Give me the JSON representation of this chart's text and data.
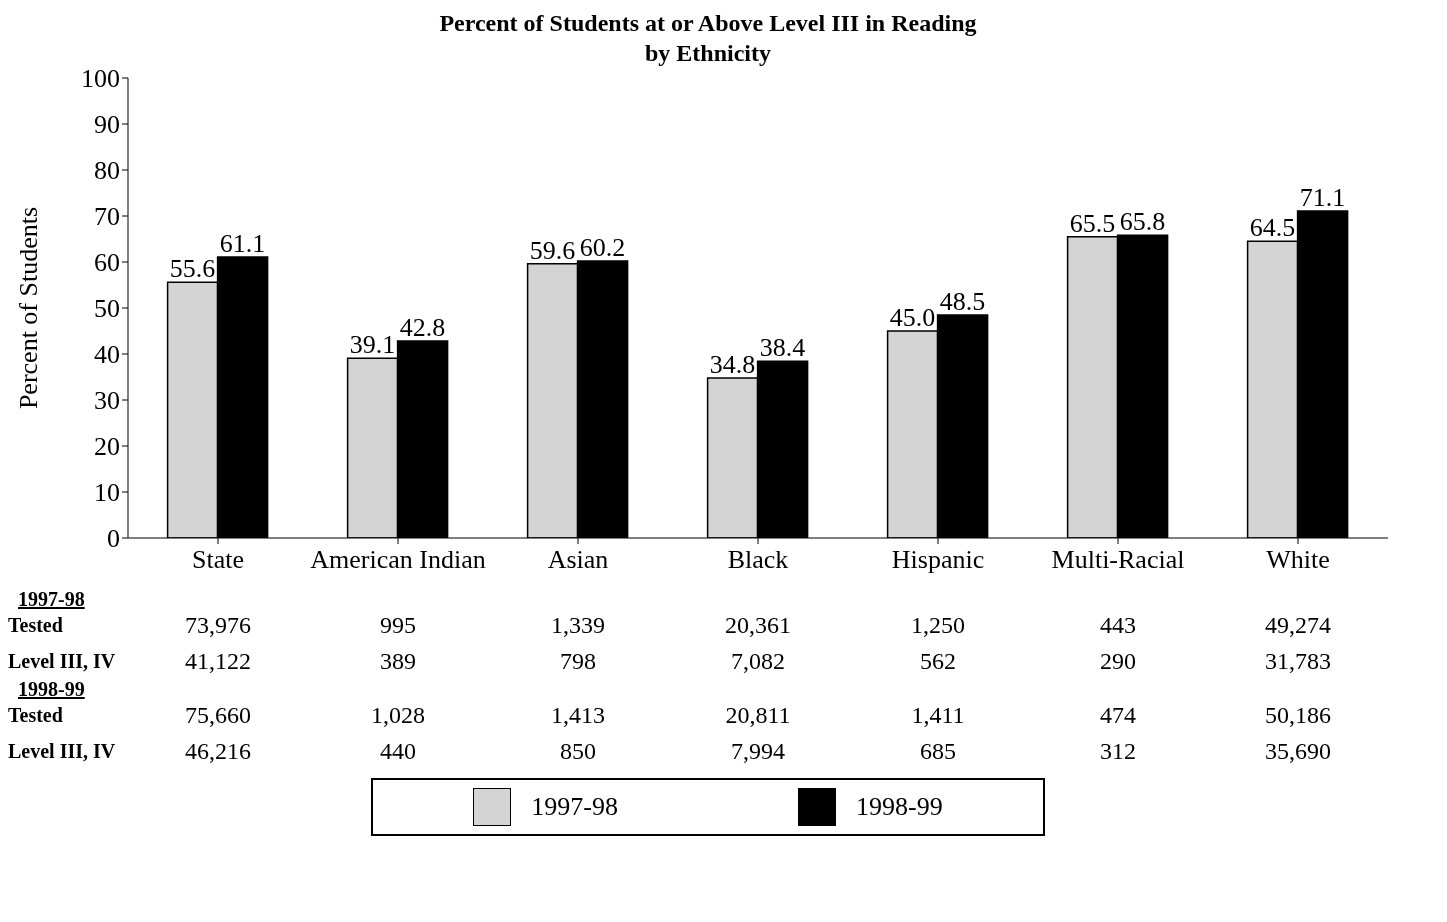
{
  "chart_data": {
    "type": "bar",
    "title": "Percent of Students at or Above Level III in Reading",
    "subtitle": "by Ethnicity",
    "ylabel": "Percent of Students",
    "categories": [
      "State",
      "American Indian",
      "Asian",
      "Black",
      "Hispanic",
      "Multi-Racial",
      "White"
    ],
    "series": [
      {
        "name": "1997-98",
        "color": "#d4d4d4",
        "values": [
          55.6,
          39.1,
          59.6,
          34.8,
          45.0,
          65.5,
          64.5
        ],
        "value_labels": [
          "55.6",
          "39.1",
          "59.6",
          "34.8",
          "45.0",
          "65.5",
          "64.5"
        ]
      },
      {
        "name": "1998-99",
        "color": "#000000",
        "values": [
          61.1,
          42.8,
          60.2,
          38.4,
          48.5,
          65.8,
          71.1
        ],
        "value_labels": [
          "61.1",
          "42.8",
          "60.2",
          "38.4",
          "48.5",
          "65.8",
          "71.1"
        ]
      }
    ],
    "ylim": [
      0,
      100
    ],
    "yticks": [
      0,
      10,
      20,
      30,
      40,
      50,
      60,
      70,
      80,
      90,
      100
    ],
    "legend": "bottom",
    "annotations": [
      "1997-98",
      "Tested",
      "73,976",
      "995",
      "1,339",
      "20,361",
      "1,250",
      "443",
      "49,274",
      "Level III, IV",
      "41,122",
      "389",
      "798",
      "7,082",
      "562",
      "290",
      "31,783",
      "1998-99",
      "Tested",
      "75,660",
      "1,028",
      "1,413",
      "20,811",
      "1,411",
      "474",
      "50,186",
      "Level III, IV",
      "46,216",
      "440",
      "850",
      "7,994",
      "685",
      "312",
      "35,690"
    ]
  }
}
